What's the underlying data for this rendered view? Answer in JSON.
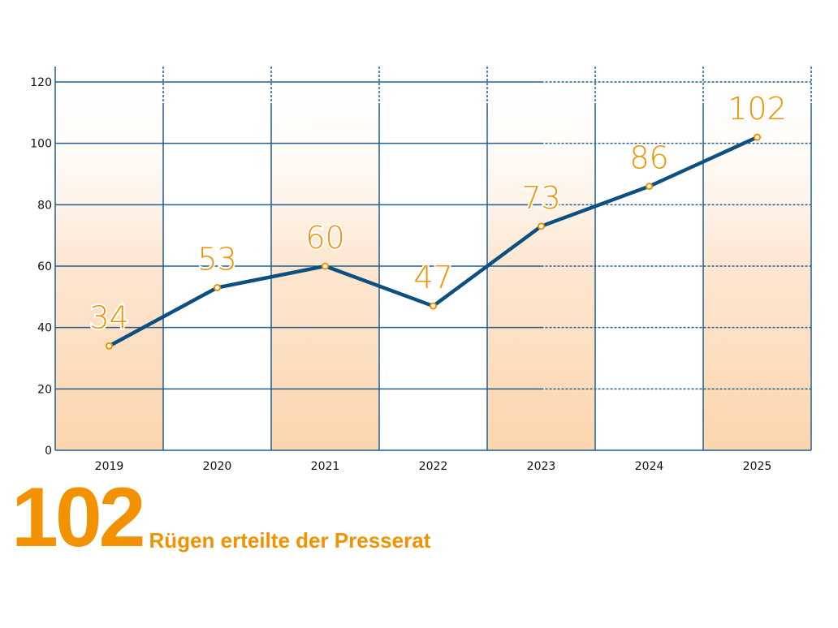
{
  "chart_data": {
    "type": "line",
    "categories": [
      "2019",
      "2020",
      "2021",
      "2022",
      "2023",
      "2024",
      "2025"
    ],
    "values": [
      34,
      53,
      60,
      47,
      73,
      86,
      102
    ],
    "data_labels": [
      "34",
      "53",
      "60",
      "47",
      "73",
      "86",
      "102"
    ],
    "ylim": [
      0,
      120
    ],
    "yticks": [
      "0",
      "20",
      "40",
      "60",
      "80",
      "100",
      "120"
    ],
    "grid": true,
    "colors": {
      "line": "#0e4f82",
      "grid": "#1f5f94",
      "label": "#f39200",
      "marker": "#f39200",
      "shade": "#fcd9b5"
    },
    "shaded_categories": [
      "2019",
      "2021",
      "2023",
      "2025"
    ]
  },
  "headline": {
    "number": "102",
    "text": "Rügen erteilte der Presserat"
  }
}
